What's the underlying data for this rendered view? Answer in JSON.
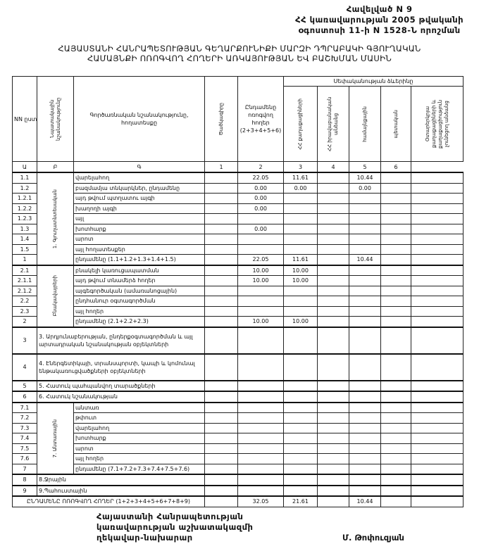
{
  "annex": {
    "line1": "Հավելված N 9",
    "line2": "ՀՀ կառավարության 2005 թվականի",
    "line3": "օգոստոսի 11-ի N 1528-Ն որոշման"
  },
  "title": {
    "line1": "ՀԱՅԱՍՏԱՆԻ ՀԱՆՐԱՊԵՏՈՒԹՅԱՆ ԳԵՂԱՐՔՈՒՆԻՔԻ ՄԱՐԶԻ ԴՊՐԱԲԱԿԻ ԳՅՈՒՂԱԿԱՆ",
    "line2": "ՀԱՄԱՅՆՔԻ ՈՌՈԳՎՈՂ ՀՈՂԵՐԻ ԱՌԿԱՅՈՒԹՅԱՆ ԵՎ ԲԱՇԽՄԱՆ ՄԱՍԻՆ"
  },
  "header": {
    "nn": "NN ըստ",
    "category": "Նպատակային նշանակությունը",
    "land_type": "Գործառնական նշանակությունը, հողատեսքը",
    "code": "Ծածկագիրը",
    "total": "Ընդամենը ոռոգվող հողեր (2+3+4+5+6)",
    "distribution": "Սեփականության ձևերինը",
    "col2": "ՀՀ քաղաքացիների",
    "col3": "ՀՀ իրավաբանական անձանց",
    "col4": "համայնքային",
    "col5": "պետական",
    "col6": "Օտարերկրյա քաղաքացիների և քաղաքացիություն չունեցող անձանց"
  },
  "column_numbers": [
    "Ա",
    "Բ",
    "Գ",
    "1",
    "2",
    "3",
    "4",
    "5",
    "6"
  ],
  "groups": {
    "g1": "1. Գյուղատնտեսական",
    "g2": "Բնակավայրերի",
    "g7": "7. Անտառային"
  },
  "rows": [
    {
      "nn": "1.1",
      "name": "վարելահող",
      "total": "22.05",
      "c2": "11.61",
      "c4": "10.44"
    },
    {
      "nn": "1.2",
      "name": "բազմամյա տնկարկներ, ընդամենը",
      "total": "0.00",
      "c2": "0.00",
      "c4": "0.00"
    },
    {
      "nn": "1.2.1",
      "name": "այդ թվում        պտղատու այգի",
      "total": "0.00"
    },
    {
      "nn": "1.2.2",
      "name": "                     խաղողի այգի",
      "total": "0.00"
    },
    {
      "nn": "1.2.3",
      "name": "այլ"
    },
    {
      "nn": "1.3",
      "name": "խոտհարք",
      "total": "0.00"
    },
    {
      "nn": "1.4",
      "name": "արոտ"
    },
    {
      "nn": "1.5",
      "name": "այլ հողատեսքեր"
    },
    {
      "nn": "1",
      "name": "ընդամենը (1.1+1.2+1.3+1.4+1.5)",
      "total": "22.05",
      "c2": "11.61",
      "c4": "10.44"
    },
    {
      "nn": "2.1",
      "name": "բնակելի կառուցապատման",
      "total": "10.00",
      "c2": "10.00"
    },
    {
      "nn": "2.1.1",
      "name": "այդ թվում տնամերձ հողեր",
      "total": "10.00",
      "c2": "10.00"
    },
    {
      "nn": "2.1.2",
      "name": "այգեգործական (ամառանոցային)"
    },
    {
      "nn": "2.2",
      "name": "ընդհանուր օգտագործման"
    },
    {
      "nn": "2.3",
      "name": "այլ հողեր"
    },
    {
      "nn": "2",
      "name": "ընդամենը (2.1+2.2+2.3)",
      "total": "10.00",
      "c2": "10.00"
    },
    {
      "nn": "3",
      "name": "3. Արդյունաբերության, ընդերքօգտագործման և այլ արտադրական նշանակության օբյեկտների"
    },
    {
      "nn": "4",
      "name": "4. Էներգետիկայի, տրանսպորտի, կապի և կոմունալ ենթակառուցվածքների օբյեկտների"
    },
    {
      "nn": "5",
      "name": "5. Հատուկ պահպանվող տարածքների"
    },
    {
      "nn": "6",
      "name": "6. Հատուկ նշանակության"
    },
    {
      "nn": "7.1",
      "name": "անտառ"
    },
    {
      "nn": "7.2",
      "name": "թփուտ"
    },
    {
      "nn": "7.3",
      "name": "վարելահող"
    },
    {
      "nn": "7.4",
      "name": "խոտհարք"
    },
    {
      "nn": "7.5",
      "name": "արոտ"
    },
    {
      "nn": "7.6",
      "name": "այլ հողեր"
    },
    {
      "nn": "7",
      "name": "ընդամենը (7.1+7.2+7.3+7.4+7.5+7.6)"
    },
    {
      "nn": "8",
      "name": "8.Ջրային"
    },
    {
      "nn": "9",
      "name": "9.Պահուստային"
    }
  ],
  "grand_total": {
    "label": "ԸՆԴԱՄԵՆԸ ՈՌՈԳՎՈՂ ՀՈՂԵՐ (1+2+3+4+5+6+7+8+9)",
    "total": "32.05",
    "c2": "21.61",
    "c4": "10.44"
  },
  "signature": {
    "line1": "Հայաստանի Հանրապետության",
    "line2": "կառավարության աշխատակազմի",
    "line3": "ղեկավար-նախարար",
    "name": "Մ. Թոփուզյան"
  }
}
